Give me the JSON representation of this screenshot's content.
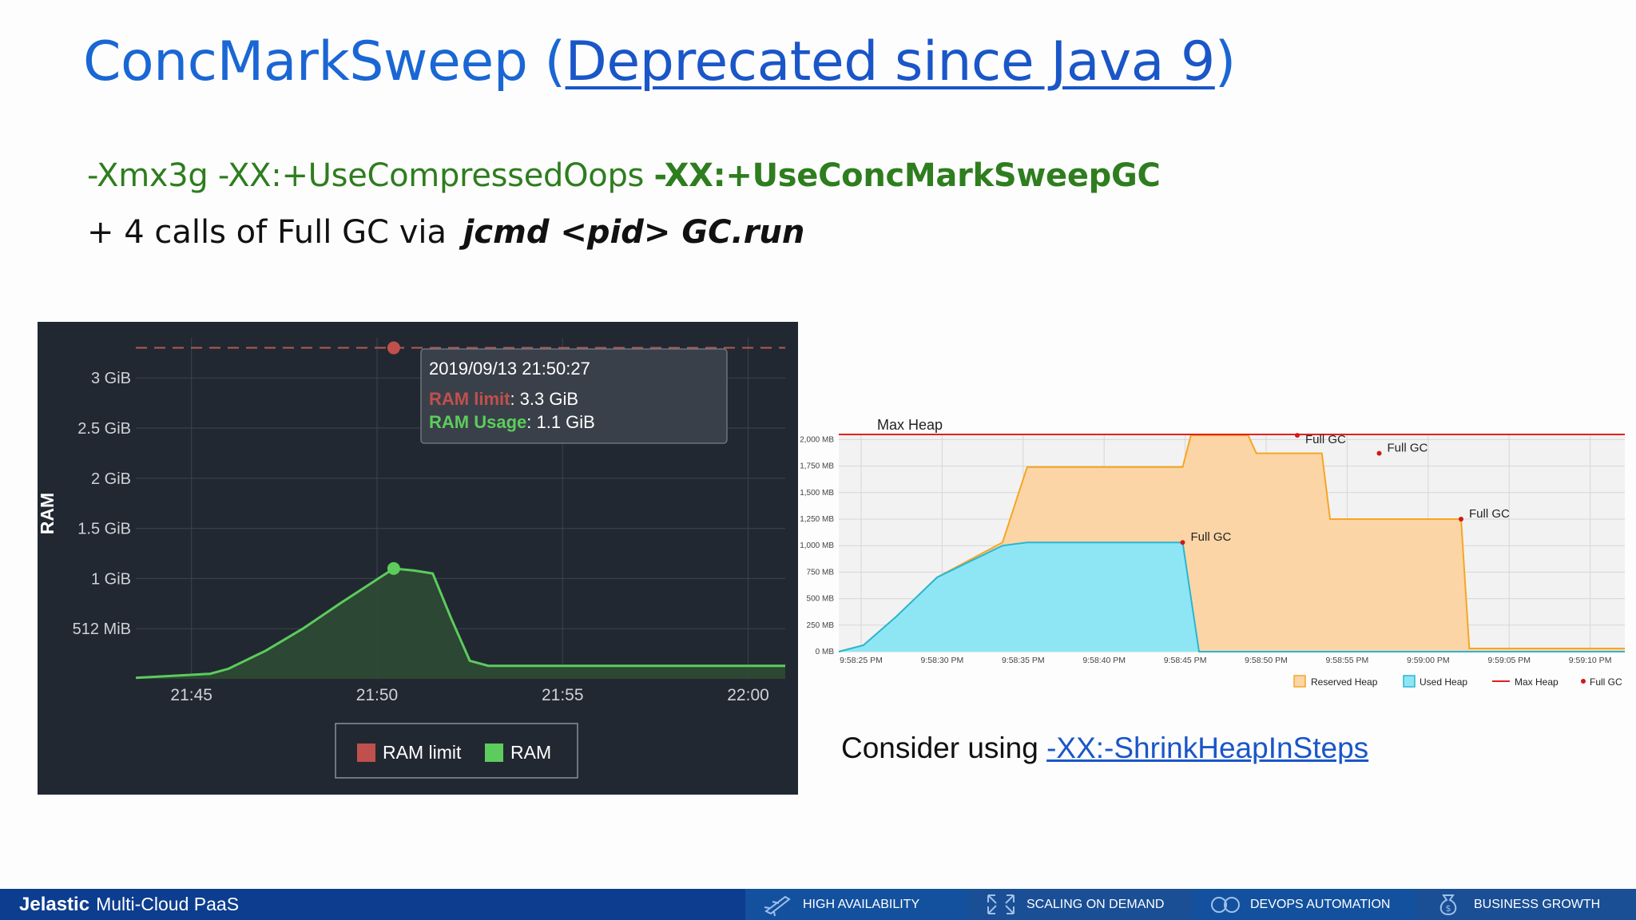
{
  "slide": {
    "title_prefix": "ConcMarkSweep (",
    "title_link": "Deprecated since Java 9",
    "title_suffix": ")",
    "cmd_normal": "-Xmx3g -XX:+UseCompressedOops ",
    "cmd_bold": "-XX:+UseConcMarkSweepGC",
    "calls_text": "+ 4 calls of Full GC via ",
    "calls_cmd": "jcmd <pid> GC.run",
    "consider_text": "Consider using ",
    "consider_link": "-XX:-ShrinkHeapInSteps"
  },
  "footer": {
    "logo": "Jelastic",
    "subtitle": "Multi-Cloud PaaS",
    "items": [
      "HIGH AVAILABILITY",
      "SCALING ON DEMAND",
      "DEVOPS AUTOMATION",
      "BUSINESS GROWTH"
    ]
  },
  "colors": {
    "title": "#1a66d4",
    "cmd_green": "#2e7d1e",
    "footer_bg": "#0d3d8f",
    "ram_line": "#5ccc5c",
    "ram_limit": "#c0504d",
    "reserved_heap": "#f5a623",
    "used_heap": "#29b6d4",
    "max_heap": "#e02020"
  },
  "chart_data": [
    {
      "type": "area",
      "ylabel": "RAM",
      "x_ticks": [
        "21:45",
        "21:50",
        "21:55",
        "22:00"
      ],
      "y_ticks": [
        {
          "value": 0.5,
          "label": "512 MiB"
        },
        {
          "value": 1,
          "label": "1 GiB"
        },
        {
          "value": 1.5,
          "label": "1.5 GiB"
        },
        {
          "value": 2,
          "label": "2 GiB"
        },
        {
          "value": 2.5,
          "label": "2.5 GiB"
        },
        {
          "value": 3,
          "label": "3 GiB"
        }
      ],
      "ylim": [
        0,
        3.4
      ],
      "grid": true,
      "legend": [
        "RAM limit",
        "RAM"
      ],
      "legend_position": "bottom",
      "series": [
        {
          "name": "RAM limit",
          "style": "dashed",
          "x": [
            "21:43:30",
            "22:01:00"
          ],
          "y": [
            3.3,
            3.3
          ]
        },
        {
          "name": "RAM",
          "x": [
            "21:43:30",
            "21:44:30",
            "21:45:30",
            "21:46:00",
            "21:47:00",
            "21:48:00",
            "21:49:00",
            "21:50:27",
            "21:51:00",
            "21:51:30",
            "21:52:00",
            "21:52:30",
            "21:53:00",
            "21:55:00",
            "21:58:00",
            "22:01:00"
          ],
          "y": [
            0.01,
            0.03,
            0.05,
            0.1,
            0.28,
            0.5,
            0.75,
            1.1,
            1.08,
            1.05,
            0.6,
            0.18,
            0.13,
            0.13,
            0.13,
            0.13
          ]
        }
      ],
      "tooltip": {
        "time": "2019/09/13 21:50:27",
        "limit_label": "RAM limit",
        "limit_value": "3.3 GiB",
        "usage_label": "RAM Usage",
        "usage_value": "1.1 GiB"
      }
    },
    {
      "type": "area",
      "annotation": "Max Heap",
      "x_ticks": [
        "9:58:25 PM",
        "9:58:30 PM",
        "9:58:35 PM",
        "9:58:40 PM",
        "9:58:45 PM",
        "9:58:50 PM",
        "9:58:55 PM",
        "9:59:00 PM",
        "9:59:05 PM",
        "9:59:10 PM"
      ],
      "y_ticks": [
        "0 MB",
        "250 MB",
        "500 MB",
        "750 MB",
        "1,000 MB",
        "1,250 MB",
        "1,500 MB",
        "1,750 MB",
        "2,000 MB"
      ],
      "ylim": [
        0,
        2048
      ],
      "grid": true,
      "legend": [
        "Reserved Heap",
        "Used Heap",
        "Max Heap",
        "Full GC"
      ],
      "legend_position": "bottom-right",
      "series": [
        {
          "name": "Reserved Heap",
          "x": [
            0,
            1.5,
            3.5,
            6,
            10,
            11.5,
            21,
            21.5,
            25,
            25.5,
            29.5,
            30,
            33,
            33.5,
            38,
            38.5,
            42,
            43,
            48
          ],
          "y": [
            0,
            60,
            330,
            700,
            1030,
            1740,
            1740,
            2040,
            2040,
            1870,
            1870,
            1250,
            1250,
            1250,
            1250,
            30,
            30,
            30,
            30
          ]
        },
        {
          "name": "Used Heap",
          "x": [
            0,
            1.5,
            3.5,
            6,
            10,
            11.5,
            21,
            22,
            48
          ],
          "y": [
            0,
            60,
            330,
            700,
            1000,
            1030,
            1030,
            0,
            0
          ]
        },
        {
          "name": "Max Heap",
          "x": [
            0,
            48
          ],
          "y": [
            2048,
            2048
          ]
        }
      ],
      "full_gc": [
        {
          "x": 21,
          "y": 1030,
          "label": "Full GC"
        },
        {
          "x": 28,
          "y": 2040,
          "label": "Full GC"
        },
        {
          "x": 33,
          "y": 1870,
          "label": "Full GC"
        },
        {
          "x": 38,
          "y": 1250,
          "label": "Full GC"
        }
      ]
    }
  ]
}
